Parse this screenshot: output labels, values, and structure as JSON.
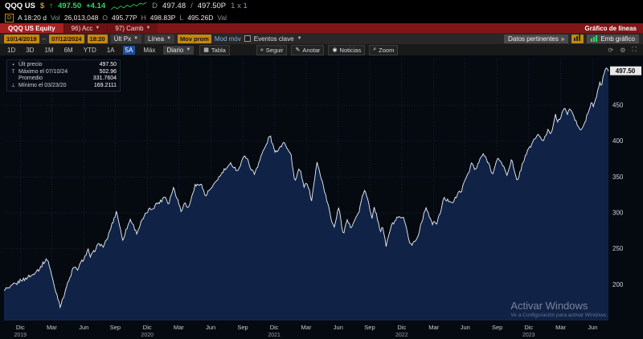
{
  "quote": {
    "ticker": "QQQ US",
    "currency": "$",
    "arrow": "↑",
    "last": "497.50",
    "change": "+4.14",
    "sparkline": [
      3,
      6,
      4,
      7,
      5,
      8,
      6,
      9,
      7,
      10,
      9,
      11
    ],
    "bid_prefix": "D",
    "bid": "497.48",
    "sep": "/",
    "ask": "497.50P",
    "lot": "1 x 1",
    "delayed_badge": "D",
    "session": "A 18:20 d",
    "vol_label": "Vol",
    "vol": "26,013,048",
    "o_label": "O",
    "open": "495.77P",
    "h_label": "H",
    "high": "498.83P",
    "l_label": "L",
    "low": "495.26D",
    "val_label": "Val"
  },
  "command_bar": {
    "security": "QQQ US Equity",
    "acc": "96) Acc",
    "camb": "97) Camb",
    "title": "Gráfico de líneas"
  },
  "toolbar": {
    "date_from": "10/14/2019",
    "date_to": "07/12/2024",
    "time": "18:20",
    "px_source": "Últ Px",
    "study": "Línea",
    "mov_button": "Mov prom",
    "mod_link": "Mod móv",
    "events_label": "Eventos clave",
    "datos_button": "Datos pertinentes",
    "datos_arrow": "»",
    "emb_button": "Emb gráfico"
  },
  "tabbar": {
    "ranges": [
      "1D",
      "3D",
      "1M",
      "6M",
      "YTD",
      "1A",
      "5A",
      "Máx"
    ],
    "active_range": "5A",
    "frequency": "Diario",
    "table_icon": "▦",
    "table_label": "Tabla",
    "overlay_buttons": [
      {
        "icon": "«",
        "label": "Seguir"
      },
      {
        "icon": "✎",
        "label": "Anotar"
      },
      {
        "icon": "◉",
        "label": "Noticias"
      },
      {
        "icon": "⌕",
        "label": "Zoom"
      }
    ]
  },
  "legend": {
    "rows": [
      {
        "marker": "▪",
        "label": "Últ precio",
        "value": "497.50"
      },
      {
        "marker": "T",
        "label": "Máximo el 07/10/24",
        "value": "502.96"
      },
      {
        "marker": "",
        "label": "Promedio",
        "value": "331.7604"
      },
      {
        "marker": "⊥",
        "label": "Mínimo el 03/23/20",
        "value": "169.2111"
      }
    ]
  },
  "watermark": {
    "line1": "Activar Windows",
    "line2": "Ve a Configuración para activar Windows."
  },
  "chart_data": {
    "type": "area",
    "title": "QQQ US Equity — Últ precio",
    "x_range": [
      "10/14/2019",
      "07/12/2024"
    ],
    "ylim": [
      150,
      515
    ],
    "y_ticks": [
      200,
      250,
      300,
      350,
      400,
      450
    ],
    "last_price": 497.5,
    "last_price_label": "497.50",
    "grid": true,
    "legend_position": "top-left",
    "x_ticks": [
      {
        "f": 0.027,
        "m": "Dic",
        "y": "2019"
      },
      {
        "f": 0.079,
        "m": "Mar"
      },
      {
        "f": 0.132,
        "m": "Jun"
      },
      {
        "f": 0.184,
        "m": "Sep"
      },
      {
        "f": 0.237,
        "m": "Dic",
        "y": "2020"
      },
      {
        "f": 0.289,
        "m": "Mar"
      },
      {
        "f": 0.342,
        "m": "Jun"
      },
      {
        "f": 0.395,
        "m": "Sep"
      },
      {
        "f": 0.447,
        "m": "Dic",
        "y": "2021"
      },
      {
        "f": 0.5,
        "m": "Mar"
      },
      {
        "f": 0.553,
        "m": "Jun"
      },
      {
        "f": 0.605,
        "m": "Sep"
      },
      {
        "f": 0.658,
        "m": "Dic",
        "y": "2022"
      },
      {
        "f": 0.711,
        "m": "Mar"
      },
      {
        "f": 0.763,
        "m": "Jun"
      },
      {
        "f": 0.816,
        "m": "Sep"
      },
      {
        "f": 0.868,
        "m": "Dic",
        "y": "2023"
      },
      {
        "f": 0.921,
        "m": "Mar"
      },
      {
        "f": 0.974,
        "m": "Jun"
      }
    ],
    "anchors": [
      [
        0.0,
        192
      ],
      [
        0.012,
        197
      ],
      [
        0.026,
        205
      ],
      [
        0.044,
        212
      ],
      [
        0.058,
        222
      ],
      [
        0.072,
        237
      ],
      [
        0.081,
        205
      ],
      [
        0.093,
        170
      ],
      [
        0.104,
        198
      ],
      [
        0.114,
        222
      ],
      [
        0.123,
        223
      ],
      [
        0.139,
        248
      ],
      [
        0.142,
        238
      ],
      [
        0.158,
        258
      ],
      [
        0.165,
        252
      ],
      [
        0.179,
        284
      ],
      [
        0.186,
        303
      ],
      [
        0.196,
        263
      ],
      [
        0.202,
        275
      ],
      [
        0.209,
        292
      ],
      [
        0.219,
        272
      ],
      [
        0.235,
        300
      ],
      [
        0.254,
        313
      ],
      [
        0.267,
        323
      ],
      [
        0.272,
        313
      ],
      [
        0.281,
        336
      ],
      [
        0.293,
        302
      ],
      [
        0.298,
        316
      ],
      [
        0.304,
        305
      ],
      [
        0.316,
        337
      ],
      [
        0.325,
        342
      ],
      [
        0.333,
        324
      ],
      [
        0.344,
        335
      ],
      [
        0.36,
        355
      ],
      [
        0.375,
        368
      ],
      [
        0.388,
        359
      ],
      [
        0.398,
        382
      ],
      [
        0.414,
        353
      ],
      [
        0.421,
        370
      ],
      [
        0.44,
        408
      ],
      [
        0.449,
        383
      ],
      [
        0.463,
        400
      ],
      [
        0.475,
        380
      ],
      [
        0.481,
        343
      ],
      [
        0.489,
        362
      ],
      [
        0.496,
        337
      ],
      [
        0.502,
        341
      ],
      [
        0.509,
        318
      ],
      [
        0.518,
        371
      ],
      [
        0.533,
        322
      ],
      [
        0.542,
        289
      ],
      [
        0.547,
        282
      ],
      [
        0.554,
        310
      ],
      [
        0.561,
        269
      ],
      [
        0.568,
        289
      ],
      [
        0.574,
        280
      ],
      [
        0.588,
        303
      ],
      [
        0.596,
        334
      ],
      [
        0.609,
        295
      ],
      [
        0.612,
        310
      ],
      [
        0.623,
        274
      ],
      [
        0.626,
        283
      ],
      [
        0.632,
        255
      ],
      [
        0.642,
        284
      ],
      [
        0.649,
        291
      ],
      [
        0.66,
        294
      ],
      [
        0.672,
        258
      ],
      [
        0.675,
        255
      ],
      [
        0.684,
        266
      ],
      [
        0.698,
        309
      ],
      [
        0.707,
        287
      ],
      [
        0.716,
        285
      ],
      [
        0.728,
        320
      ],
      [
        0.742,
        315
      ],
      [
        0.758,
        334
      ],
      [
        0.774,
        370
      ],
      [
        0.779,
        359
      ],
      [
        0.793,
        383
      ],
      [
        0.802,
        368
      ],
      [
        0.809,
        355
      ],
      [
        0.818,
        378
      ],
      [
        0.832,
        354
      ],
      [
        0.84,
        374
      ],
      [
        0.849,
        342
      ],
      [
        0.858,
        370
      ],
      [
        0.868,
        389
      ],
      [
        0.884,
        411
      ],
      [
        0.89,
        398
      ],
      [
        0.9,
        415
      ],
      [
        0.905,
        411
      ],
      [
        0.912,
        437
      ],
      [
        0.916,
        425
      ],
      [
        0.926,
        445
      ],
      [
        0.933,
        439
      ],
      [
        0.937,
        446
      ],
      [
        0.953,
        414
      ],
      [
        0.961,
        425
      ],
      [
        0.972,
        455
      ],
      [
        0.975,
        447
      ],
      [
        0.98,
        462
      ],
      [
        0.985,
        481
      ],
      [
        0.988,
        475
      ],
      [
        0.993,
        496
      ],
      [
        0.997,
        502.96
      ],
      [
        1.0,
        497.5
      ]
    ],
    "samples": 560,
    "noise_amp": 2.4,
    "colors": {
      "line": "#eef1f5",
      "fill": "#102347",
      "grid": "#232c47",
      "bg": "#050910"
    }
  }
}
